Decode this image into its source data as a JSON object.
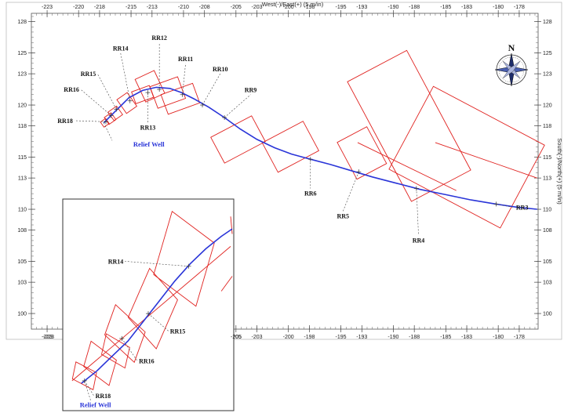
{
  "chart_data": {
    "type": "line",
    "xlabel": "West(-)/East(+) (5 m/in)",
    "ylabel": "South(-)/North(+) (5 m/in)",
    "xlim": [
      -224.5,
      -176.2
    ],
    "ylim": [
      98.5,
      128.8
    ],
    "x_ticks": [
      -223,
      -220,
      -218,
      -215,
      -213,
      -210,
      -208,
      -205,
      -203,
      -200,
      -198,
      -195,
      -193,
      -190,
      -188,
      -185,
      -183,
      -180,
      -178
    ],
    "y_ticks": [
      100,
      103,
      105,
      108,
      110,
      113,
      115,
      118,
      120,
      123,
      125,
      128
    ],
    "compass_label": "N",
    "series": [
      {
        "name": "Relief Well",
        "color": "#2a35d8",
        "x": [
          -217.6,
          -217.0,
          -216.2,
          -215.2,
          -213.9,
          -212.6,
          -211.3,
          -210.2,
          -209.0,
          -207.6,
          -206.1,
          -204.6,
          -203.0,
          -201.3,
          -199.7,
          -197.9,
          -196.0,
          -194.0,
          -192.0,
          -189.7,
          -187.4,
          -185.0,
          -182.6,
          -180.2,
          -178.2,
          -176.3
        ],
        "y": [
          118.3,
          118.9,
          119.7,
          120.7,
          121.4,
          121.7,
          121.6,
          121.2,
          120.6,
          119.8,
          118.8,
          117.7,
          116.7,
          115.9,
          115.3,
          114.8,
          114.3,
          113.7,
          113.1,
          112.5,
          111.9,
          111.4,
          110.9,
          110.5,
          110.2,
          110.0
        ]
      }
    ],
    "stations": [
      {
        "label": "RR3",
        "x": -180.2,
        "y": 110.5
      },
      {
        "label": "RR4",
        "x": -187.8,
        "y": 112.0
      },
      {
        "label": "RR5",
        "x": -193.3,
        "y": 113.6
      },
      {
        "label": "RR6",
        "x": -197.9,
        "y": 114.8
      },
      {
        "label": "RR9",
        "x": -206.1,
        "y": 118.8
      },
      {
        "label": "RR10",
        "x": -208.2,
        "y": 120.0
      },
      {
        "label": "RR11",
        "x": -210.1,
        "y": 121.0
      },
      {
        "label": "RR12",
        "x": -212.3,
        "y": 121.5
      },
      {
        "label": "RR13",
        "x": -213.4,
        "y": 121.2
      },
      {
        "label": "RR14",
        "x": -215.1,
        "y": 120.4
      },
      {
        "label": "RR15",
        "x": -216.4,
        "y": 119.6
      },
      {
        "label": "RR16",
        "x": -216.9,
        "y": 119.0
      },
      {
        "label": "RR18",
        "x": -217.4,
        "y": 118.4
      }
    ],
    "uncertainty_boxes": [
      {
        "station": "RR3",
        "cx": -183.0,
        "cy": 115.0,
        "hw": 6.0,
        "hh": 4.5,
        "rot": -28
      },
      {
        "station": "RR4",
        "cx": -188.5,
        "cy": 118.0,
        "hw": 3.2,
        "hh": 6.5,
        "rot": 28
      },
      {
        "station": "RR5",
        "cx": -193.0,
        "cy": 115.4,
        "hw": 1.6,
        "hh": 2.0,
        "rot": 28
      },
      {
        "station": "RR6",
        "cx": -199.8,
        "cy": 116.0,
        "hw": 2.2,
        "hh": 1.6,
        "rot": 28
      },
      {
        "station": "RR9",
        "cx": -204.8,
        "cy": 116.7,
        "hw": 2.2,
        "hh": 1.4,
        "rot": 28
      },
      {
        "station": "RR10",
        "cx": -210.3,
        "cy": 120.6,
        "hw": 1.6,
        "hh": 1.0,
        "rot": 20
      },
      {
        "station": "RR11",
        "cx": -211.5,
        "cy": 121.2,
        "hw": 1.4,
        "hh": 1.1,
        "rot": 20
      },
      {
        "station": "RR12",
        "cx": -213.2,
        "cy": 121.8,
        "hw": 1.0,
        "hh": 1.2,
        "rot": 25
      },
      {
        "station": "RR13",
        "cx": -213.9,
        "cy": 121.0,
        "hw": 0.9,
        "hh": 0.6,
        "rot": 20
      },
      {
        "station": "RR14",
        "cx": -215.4,
        "cy": 120.2,
        "hw": 0.6,
        "hh": 0.8,
        "rot": 35
      },
      {
        "station": "RR15",
        "cx": -216.5,
        "cy": 119.2,
        "hw": 0.5,
        "hh": 0.5,
        "rot": 35
      },
      {
        "station": "RR16",
        "cx": -217.0,
        "cy": 118.7,
        "hw": 0.4,
        "hh": 0.4,
        "rot": 35
      },
      {
        "station": "RR18",
        "cx": -217.5,
        "cy": 118.3,
        "hw": 0.3,
        "hh": 0.3,
        "rot": 35
      }
    ],
    "label_anchors": [
      {
        "label": "RR3",
        "lx": -178.6,
        "ly": 110.2
      },
      {
        "label": "RR4",
        "lx": -187.6,
        "ly": 107.5
      },
      {
        "label": "RR5",
        "lx": -194.8,
        "ly": 109.8
      },
      {
        "label": "RR6",
        "lx": -197.9,
        "ly": 112.0
      },
      {
        "label": "RR9",
        "lx": -203.6,
        "ly": 121.0
      },
      {
        "label": "RR10",
        "lx": -206.5,
        "ly": 123.0
      },
      {
        "label": "RR11",
        "lx": -209.8,
        "ly": 124.0
      },
      {
        "label": "RR12",
        "lx": -212.3,
        "ly": 126.0
      },
      {
        "label": "RR13",
        "lx": -213.4,
        "ly": 118.3
      },
      {
        "label": "RR14",
        "lx": -216.0,
        "ly": 125.0
      },
      {
        "label": "RR15",
        "lx": -218.2,
        "ly": 123.0
      },
      {
        "label": "RR16",
        "lx": -219.8,
        "ly": 121.5
      },
      {
        "label": "RR18",
        "lx": -220.4,
        "ly": 118.5
      }
    ],
    "relief_well_label": "Relief Well",
    "inset": {
      "x_ticks": [
        -223,
        -205
      ],
      "labels": [
        "RR14",
        "RR15",
        "RR16",
        "RR18"
      ],
      "relief_well_label": "Relief Well"
    }
  }
}
